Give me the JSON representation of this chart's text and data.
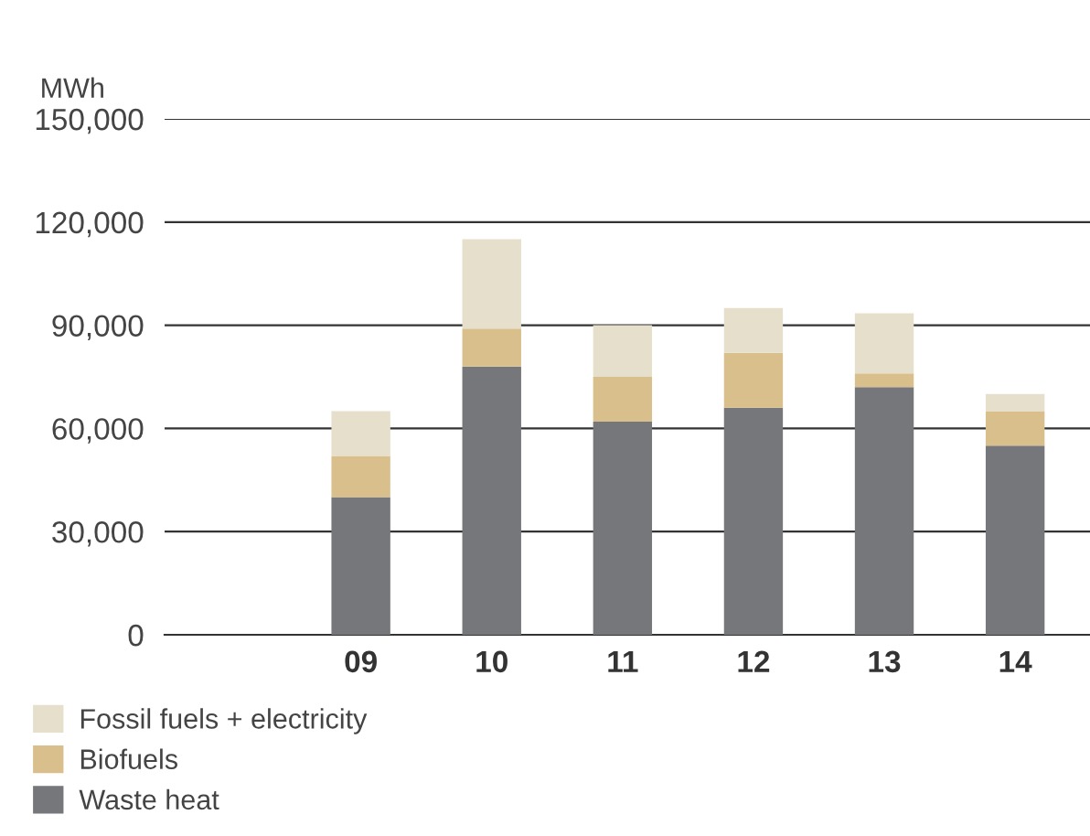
{
  "chart_data": {
    "type": "bar",
    "stacked": true,
    "ylabel": "MWh",
    "categories": [
      "09",
      "10",
      "11",
      "12",
      "13",
      "14"
    ],
    "series": [
      {
        "name": "Waste heat",
        "color": "#76777b",
        "values": [
          40000,
          78000,
          62000,
          66000,
          72000,
          55000
        ]
      },
      {
        "name": "Biofuels",
        "color": "#d9bf8c",
        "values": [
          12000,
          11000,
          13000,
          16000,
          4000,
          10000
        ]
      },
      {
        "name": "Fossil fuels + electricity",
        "color": "#e5dfcc",
        "values": [
          13000,
          26000,
          15000,
          13000,
          17500,
          5000
        ]
      }
    ],
    "ylim": [
      0,
      150000
    ],
    "yticks": [
      {
        "value": 0,
        "label": "0"
      },
      {
        "value": 30000,
        "label": "30,000"
      },
      {
        "value": 60000,
        "label": "60,000"
      },
      {
        "value": 90000,
        "label": "90,000"
      },
      {
        "value": 120000,
        "label": "120,000"
      },
      {
        "value": 150000,
        "label": "150,000"
      }
    ],
    "grid": "y",
    "legend": "bottom"
  }
}
